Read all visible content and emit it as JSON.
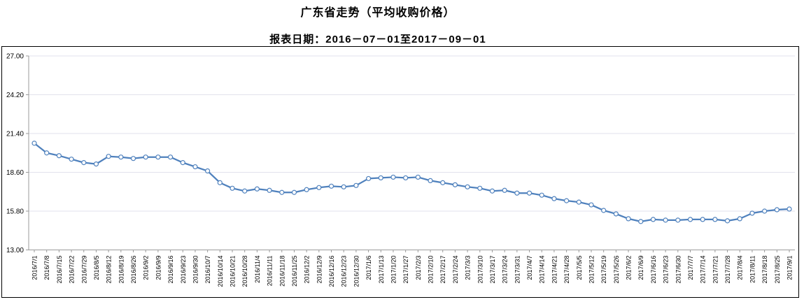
{
  "header": {
    "title": "广东省走势（平均收购价格）",
    "subtitle": "报表日期：2016－07－01至2017－09－01"
  },
  "chart_data": {
    "type": "line",
    "title": "广东省走势（平均收购价格）",
    "subtitle": "报表日期：2016－07－01至2017－09－01",
    "xlabel": "",
    "ylabel": "",
    "ylim": [
      13.0,
      27.0
    ],
    "ytick_interval": 2.8,
    "yticks": [
      "27.00",
      "24.20",
      "21.40",
      "18.60",
      "15.80",
      "13.00"
    ],
    "grid": "horizontal",
    "legend": "none",
    "marker": "hollow-circle",
    "colors": {
      "line": "#4f81bd",
      "marker_fill": "#ffffff",
      "grid": "#e2e2ec",
      "axis": "#9b9b9b",
      "text": "#000000",
      "frame_border": "#000000"
    },
    "categories": [
      "2016/7/1",
      "2016/7/8",
      "2016/7/15",
      "2016/7/22",
      "2016/7/29",
      "2016/8/5",
      "2016/8/12",
      "2016/8/19",
      "2016/8/26",
      "2016/9/2",
      "2016/9/9",
      "2016/9/16",
      "2016/9/23",
      "2016/9/30",
      "2016/10/7",
      "2016/10/14",
      "2016/10/21",
      "2016/10/28",
      "2016/11/4",
      "2016/11/11",
      "2016/11/18",
      "2016/11/25",
      "2016/12/2",
      "2016/12/9",
      "2016/12/16",
      "2016/12/23",
      "2016/12/30",
      "2017/1/6",
      "2017/1/13",
      "2017/1/20",
      "2017/1/27",
      "2017/2/3",
      "2017/2/10",
      "2017/2/17",
      "2017/2/24",
      "2017/3/3",
      "2017/3/10",
      "2017/3/17",
      "2017/3/24",
      "2017/3/31",
      "2017/4/7",
      "2017/4/14",
      "2017/4/21",
      "2017/4/28",
      "2017/5/5",
      "2017/5/12",
      "2017/5/19",
      "2017/5/26",
      "2017/6/2",
      "2017/6/9",
      "2017/6/16",
      "2017/6/23",
      "2017/6/30",
      "2017/7/7",
      "2017/7/14",
      "2017/7/21",
      "2017/7/28",
      "2017/8/4",
      "2017/8/11",
      "2017/8/18",
      "2017/8/25",
      "2017/9/1"
    ],
    "values": [
      20.7,
      20.0,
      19.8,
      19.55,
      19.3,
      19.2,
      19.75,
      19.7,
      19.6,
      19.7,
      19.7,
      19.7,
      19.3,
      19.0,
      18.7,
      17.85,
      17.45,
      17.25,
      17.4,
      17.3,
      17.15,
      17.15,
      17.35,
      17.5,
      17.6,
      17.55,
      17.65,
      18.15,
      18.2,
      18.25,
      18.2,
      18.25,
      18.0,
      17.85,
      17.7,
      17.55,
      17.45,
      17.25,
      17.3,
      17.1,
      17.1,
      16.95,
      16.7,
      16.55,
      16.45,
      16.25,
      15.85,
      15.6,
      15.25,
      15.05,
      15.2,
      15.15,
      15.15,
      15.2,
      15.2,
      15.2,
      15.1,
      15.25,
      15.65,
      15.8,
      15.9,
      15.95
    ]
  }
}
